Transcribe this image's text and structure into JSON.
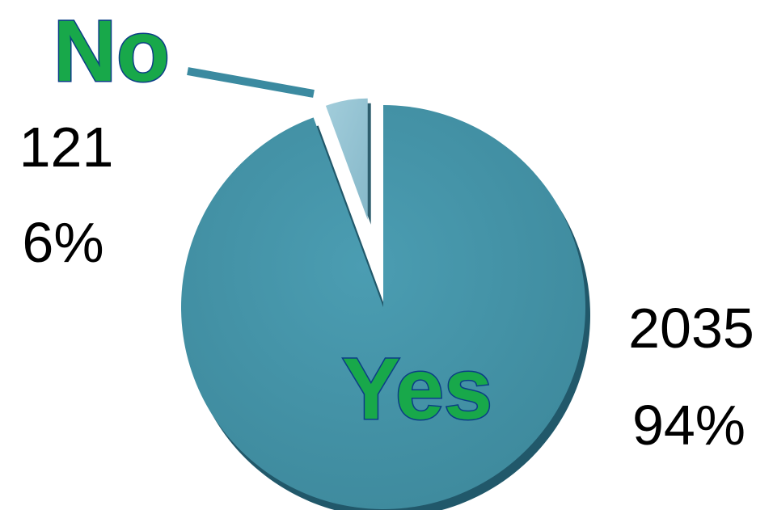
{
  "colors": {
    "yes_slice": "#4494a8",
    "no_slice": "#93c3d3",
    "label_fill": "#18a84a",
    "label_outline": "#0b3d86"
  },
  "chart_data": {
    "type": "pie",
    "categories": [
      "Yes",
      "No"
    ],
    "values": [
      2035,
      121
    ],
    "percentages": [
      "94%",
      "6%"
    ],
    "value_labels": [
      "2035",
      "121"
    ],
    "exploded": "No"
  }
}
